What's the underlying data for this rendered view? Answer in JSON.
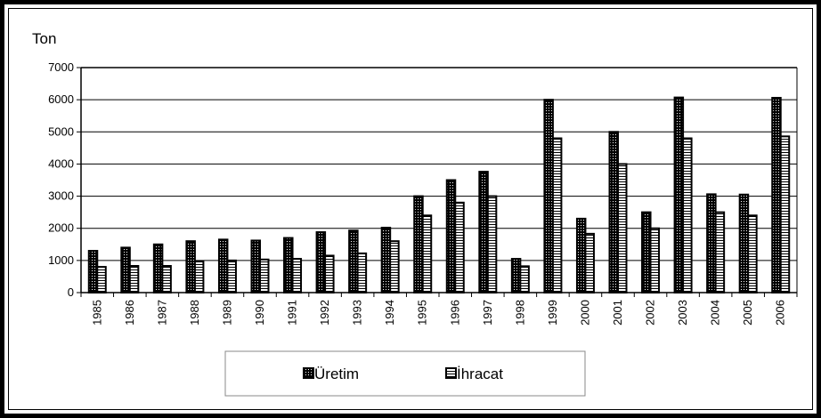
{
  "chart_data": {
    "type": "bar",
    "unit_label": "Ton",
    "categories": [
      "1985",
      "1986",
      "1987",
      "1988",
      "1989",
      "1990",
      "1991",
      "1992",
      "1993",
      "1994",
      "1995",
      "1996",
      "1997",
      "1998",
      "1999",
      "2000",
      "2001",
      "2002",
      "2003",
      "2004",
      "2005",
      "2006"
    ],
    "series": [
      {
        "name": "Üretim",
        "color": "#000000",
        "pattern": "dotted",
        "values": [
          1300,
          1400,
          1500,
          1600,
          1650,
          1620,
          1700,
          1880,
          1930,
          2020,
          3000,
          3500,
          3760,
          1050,
          6000,
          2300,
          5000,
          2500,
          6070,
          3060,
          3050,
          6060
        ]
      },
      {
        "name": "İhracat",
        "color": "#000000",
        "pattern": "horizontal-stripes",
        "values": [
          800,
          830,
          830,
          980,
          1000,
          1030,
          1050,
          1150,
          1220,
          1600,
          2400,
          2800,
          3000,
          820,
          4800,
          1830,
          4000,
          2000,
          4800,
          2500,
          2400,
          4860
        ]
      }
    ],
    "ylim": [
      0,
      7000
    ],
    "yticks": [
      0,
      1000,
      2000,
      3000,
      4000,
      5000,
      6000,
      7000
    ],
    "grid": true,
    "legend_position": "bottom"
  }
}
